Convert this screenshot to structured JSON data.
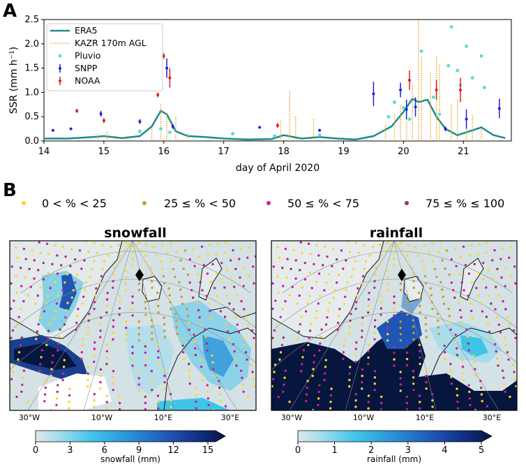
{
  "panel_a_label": "A",
  "panel_b_label": "B",
  "chart_data": [
    {
      "type": "line",
      "title": "",
      "xlabel": "day of April 2020",
      "ylabel": "SSR (mm h⁻¹)",
      "xlim": [
        14,
        21.8
      ],
      "ylim": [
        0,
        2.5
      ],
      "xticks": [
        14,
        15,
        16,
        17,
        18,
        19,
        20,
        21
      ],
      "yticks": [
        0.0,
        0.5,
        1.0,
        1.5,
        2.0,
        2.5
      ],
      "yticklabels": [
        "0.0",
        "0.5",
        "1.0",
        "1.5",
        "2.0",
        "2.5"
      ],
      "legend": [
        "ERA5",
        "KAZR 170m AGL",
        "Pluvio",
        "SNPP",
        "NOAA"
      ],
      "series": [
        {
          "name": "ERA5",
          "color": "#1a8c8c",
          "style": "line",
          "x": [
            14.0,
            14.4,
            14.8,
            15.0,
            15.3,
            15.6,
            15.8,
            15.95,
            16.05,
            16.2,
            16.4,
            16.7,
            17.0,
            17.4,
            17.8,
            18.0,
            18.3,
            18.6,
            18.9,
            19.2,
            19.5,
            19.8,
            20.0,
            20.15,
            20.25,
            20.4,
            20.55,
            20.7,
            20.9,
            21.1,
            21.3,
            21.5,
            21.7
          ],
          "y": [
            0.05,
            0.05,
            0.08,
            0.1,
            0.06,
            0.1,
            0.3,
            0.62,
            0.55,
            0.2,
            0.1,
            0.08,
            0.05,
            0.03,
            0.04,
            0.12,
            0.05,
            0.08,
            0.05,
            0.03,
            0.1,
            0.3,
            0.6,
            0.87,
            0.8,
            0.85,
            0.5,
            0.25,
            0.12,
            0.2,
            0.28,
            0.12,
            0.06
          ]
        },
        {
          "name": "KAZR 170m AGL",
          "color": "#e8a32a",
          "style": "dotted-spikes",
          "x": [
            14.9,
            15.05,
            15.2,
            15.4,
            15.8,
            15.95,
            16.05,
            16.2,
            16.4,
            17.95,
            18.1,
            18.2,
            18.5,
            19.7,
            19.85,
            19.95,
            20.05,
            20.15,
            20.25,
            20.3,
            20.45,
            20.55,
            20.6,
            20.8,
            20.9,
            21.05,
            21.15,
            21.3
          ],
          "y": [
            0.15,
            0.2,
            0.12,
            0.1,
            0.3,
            0.78,
            0.6,
            0.5,
            0.15,
            0.42,
            1.02,
            0.5,
            0.45,
            0.35,
            0.55,
            0.75,
            0.5,
            1.2,
            2.49,
            1.75,
            1.4,
            1.75,
            1.6,
            0.75,
            0.85,
            0.35,
            0.55,
            0.25
          ]
        },
        {
          "name": "Pluvio",
          "color": "#66d9d9",
          "style": "scatter",
          "x": [
            15.6,
            15.95,
            16.1,
            17.15,
            17.85,
            18.6,
            19.75,
            19.85,
            20.0,
            20.1,
            20.3,
            20.5,
            20.6,
            20.75,
            20.8,
            20.9,
            20.95,
            21.05,
            21.15,
            21.3,
            21.35
          ],
          "y": [
            0.2,
            0.25,
            0.18,
            0.15,
            0.1,
            0.12,
            0.5,
            0.8,
            0.68,
            0.45,
            1.85,
            0.9,
            0.55,
            1.55,
            2.35,
            1.45,
            1.15,
            1.95,
            1.3,
            1.75,
            1.1
          ]
        },
        {
          "name": "SNPP",
          "color": "#1f1fd6",
          "style": "errorbar",
          "x": [
            14.15,
            14.45,
            14.95,
            15.6,
            16.05,
            16.15,
            17.6,
            18.6,
            19.5,
            19.95,
            20.05,
            20.2,
            20.7,
            21.05,
            21.6
          ],
          "y": [
            0.22,
            0.25,
            0.56,
            0.4,
            1.5,
            0.3,
            0.28,
            0.22,
            0.97,
            1.05,
            0.65,
            0.7,
            0.25,
            0.45,
            0.67
          ],
          "err": [
            0.02,
            0.02,
            0.06,
            0.05,
            0.2,
            0.05,
            0.02,
            0.03,
            0.25,
            0.15,
            0.2,
            0.2,
            0.05,
            0.2,
            0.2
          ]
        },
        {
          "name": "NOAA",
          "color": "#e01c1c",
          "style": "errorbar",
          "x": [
            14.55,
            15.0,
            15.9,
            16.0,
            16.1,
            17.9,
            20.1,
            20.55,
            20.95
          ],
          "y": [
            0.62,
            0.42,
            0.95,
            1.75,
            1.3,
            0.32,
            1.25,
            1.05,
            1.05
          ],
          "err": [
            0.04,
            0.05,
            0.05,
            0.06,
            0.2,
            0.05,
            0.2,
            0.2,
            0.25
          ]
        }
      ]
    }
  ],
  "categories": [
    {
      "label": "0 < % < 25",
      "color": "#ffd429"
    },
    {
      "label": "25  ≤ % < 50",
      "color": "#c99a2e"
    },
    {
      "label": "50  ≤ % < 75",
      "color": "#cc1f93"
    },
    {
      "label": "75  ≤ % ≤ 100",
      "color": "#a6344b"
    }
  ],
  "maps": [
    {
      "title": "snowfall",
      "lon_labels": [
        "30°W",
        "10°W",
        "10°E",
        "30°E"
      ],
      "colorbar": {
        "label": "snowfall (mm)",
        "ticks": [
          "0",
          "3",
          "6",
          "9",
          "12",
          "15"
        ]
      }
    },
    {
      "title": "rainfall",
      "lon_labels": [
        "30°W",
        "10°W",
        "10°E",
        "30°E"
      ],
      "colorbar": {
        "label": "rainfall (mm)",
        "ticks": [
          "0",
          "1",
          "2",
          "3",
          "4",
          "5"
        ]
      }
    }
  ]
}
